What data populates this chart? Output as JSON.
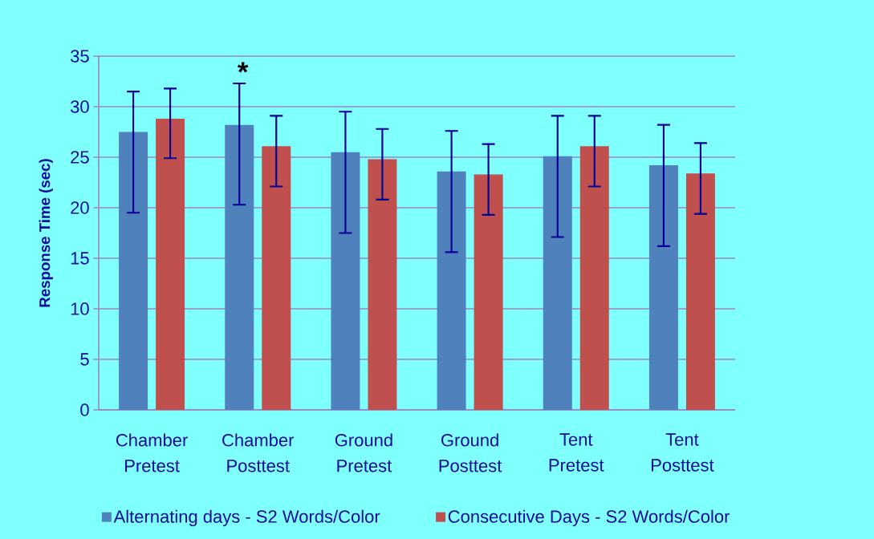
{
  "chart_data": {
    "type": "bar",
    "ylabel": "Response Time (sec)",
    "categories": [
      "Chamber Pretest",
      "Chamber Posttest",
      "Ground Pretest",
      "Ground Posttest",
      "Tent Pretest",
      "Tent Posttest"
    ],
    "series": [
      {
        "name": "Alternating days -  S2 Words/Color",
        "color": "#4f81bd",
        "values": [
          27.5,
          28.2,
          25.5,
          23.6,
          25.1,
          24.2
        ],
        "errors": [
          [
            19.5,
            31.5
          ],
          [
            20.3,
            32.3
          ],
          [
            17.5,
            29.5
          ],
          [
            15.6,
            27.6
          ],
          [
            17.1,
            29.1
          ],
          [
            16.2,
            28.2
          ]
        ]
      },
      {
        "name": "Consecutive Days - S2 Words/Color",
        "color": "#c0504d",
        "values": [
          28.8,
          26.1,
          24.8,
          23.3,
          26.1,
          23.4
        ],
        "errors": [
          [
            24.9,
            31.8
          ],
          [
            22.1,
            29.1
          ],
          [
            20.8,
            27.8
          ],
          [
            19.3,
            26.3
          ],
          [
            22.1,
            29.1
          ],
          [
            19.4,
            26.4
          ]
        ]
      }
    ],
    "ylim": [
      0,
      35
    ],
    "yticks": [
      0,
      5,
      10,
      15,
      20,
      25,
      30,
      35
    ],
    "grid": "y",
    "legend": "bottom",
    "annotations": [
      "*"
    ]
  }
}
